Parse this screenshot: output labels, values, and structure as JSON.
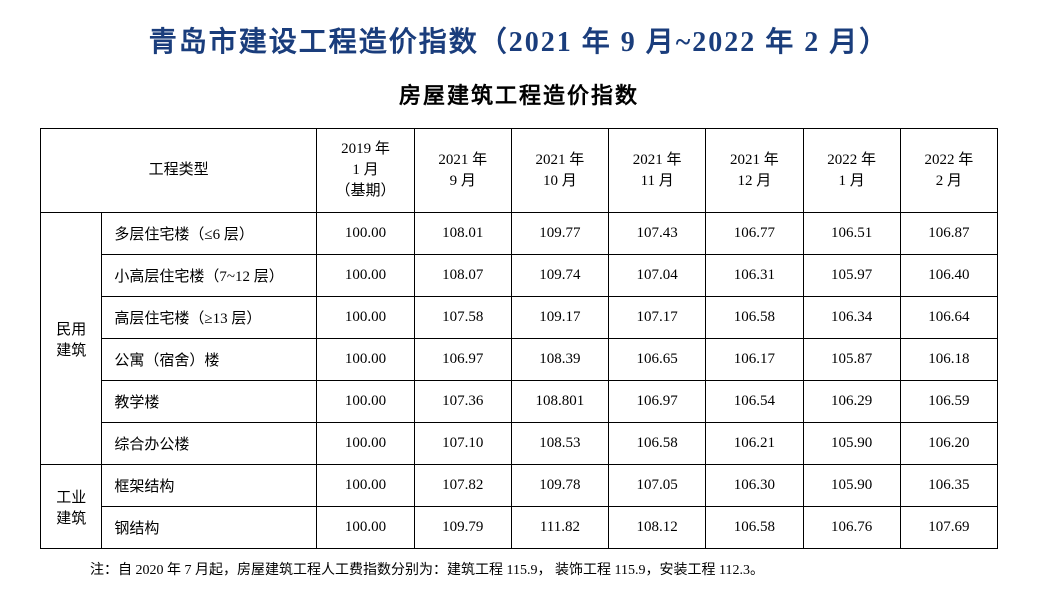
{
  "mainTitle": "青岛市建设工程造价指数（2021 年 9 月~2022 年 2 月）",
  "subTitle": "房屋建筑工程造价指数",
  "headers": {
    "projectType": "工程类型",
    "periods": [
      "2019 年\n1 月\n（基期）",
      "2021 年\n9 月",
      "2021 年\n10 月",
      "2021 年\n11 月",
      "2021 年\n12 月",
      "2022 年\n1 月",
      "2022 年\n2 月"
    ]
  },
  "categories": [
    {
      "name": "民用\n建筑",
      "rows": [
        {
          "type": "多层住宅楼（≤6 层）",
          "values": [
            "100.00",
            "108.01",
            "109.77",
            "107.43",
            "106.77",
            "106.51",
            "106.87"
          ]
        },
        {
          "type": "小高层住宅楼（7~12 层）",
          "values": [
            "100.00",
            "108.07",
            "109.74",
            "107.04",
            "106.31",
            "105.97",
            "106.40"
          ]
        },
        {
          "type": "高层住宅楼（≥13 层）",
          "values": [
            "100.00",
            "107.58",
            "109.17",
            "107.17",
            "106.58",
            "106.34",
            "106.64"
          ]
        },
        {
          "type": "公寓（宿舍）楼",
          "values": [
            "100.00",
            "106.97",
            "108.39",
            "106.65",
            "106.17",
            "105.87",
            "106.18"
          ]
        },
        {
          "type": "教学楼",
          "values": [
            "100.00",
            "107.36",
            "108.801",
            "106.97",
            "106.54",
            "106.29",
            "106.59"
          ]
        },
        {
          "type": "综合办公楼",
          "values": [
            "100.00",
            "107.10",
            "108.53",
            "106.58",
            "106.21",
            "105.90",
            "106.20"
          ]
        }
      ]
    },
    {
      "name": "工业\n建筑",
      "rows": [
        {
          "type": "框架结构",
          "values": [
            "100.00",
            "107.82",
            "109.78",
            "107.05",
            "106.30",
            "105.90",
            "106.35"
          ]
        },
        {
          "type": "钢结构",
          "values": [
            "100.00",
            "109.79",
            "111.82",
            "108.12",
            "106.58",
            "106.76",
            "107.69"
          ]
        }
      ]
    }
  ],
  "footnote": "注：自 2020 年 7 月起，房屋建筑工程人工费指数分别为：建筑工程 115.9， 装饰工程 115.9，安装工程 112.3。",
  "styling": {
    "mainTitleColor": "#1a3d7c",
    "textColor": "#000000",
    "borderColor": "#000000",
    "backgroundColor": "#ffffff",
    "mainTitleFontSize": 28,
    "subTitleFontSize": 22,
    "cellFontSize": 15,
    "footnoteFontSize": 14
  }
}
